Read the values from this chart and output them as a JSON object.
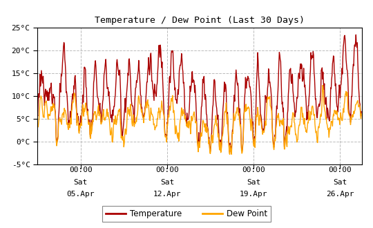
{
  "title": "Temperature / Dew Point (Last 30 Days)",
  "ylim": [
    -5,
    25
  ],
  "yticks": [
    -5,
    0,
    5,
    10,
    15,
    20,
    25
  ],
  "ytick_labels": [
    "-5°C",
    "0°C",
    "5°C",
    "10°C",
    "15°C",
    "20°C",
    "25°C"
  ],
  "xtick_positions": [
    96,
    288,
    480,
    672
  ],
  "xtick_labels_top": [
    "00:00",
    "00:00",
    "00:00",
    "00:00"
  ],
  "xtick_labels_mid": [
    "Sat",
    "Sat",
    "Sat",
    "Sat"
  ],
  "xtick_labels_bot": [
    "05.Apr",
    "12.Apr",
    "19.Apr",
    "26.Apr"
  ],
  "temp_color": "#aa0000",
  "dew_color": "#ffa500",
  "bg_color": "#ffffff",
  "plot_bg": "#ffffff",
  "grid_color": "#bbbbbb",
  "grid_style": "--",
  "line_width": 1.0,
  "legend_labels": [
    "Temperature",
    "Dew Point"
  ],
  "legend_colors": [
    "#aa0000",
    "#ffa500"
  ],
  "n_hours": 720,
  "xlim": [
    0,
    720
  ]
}
